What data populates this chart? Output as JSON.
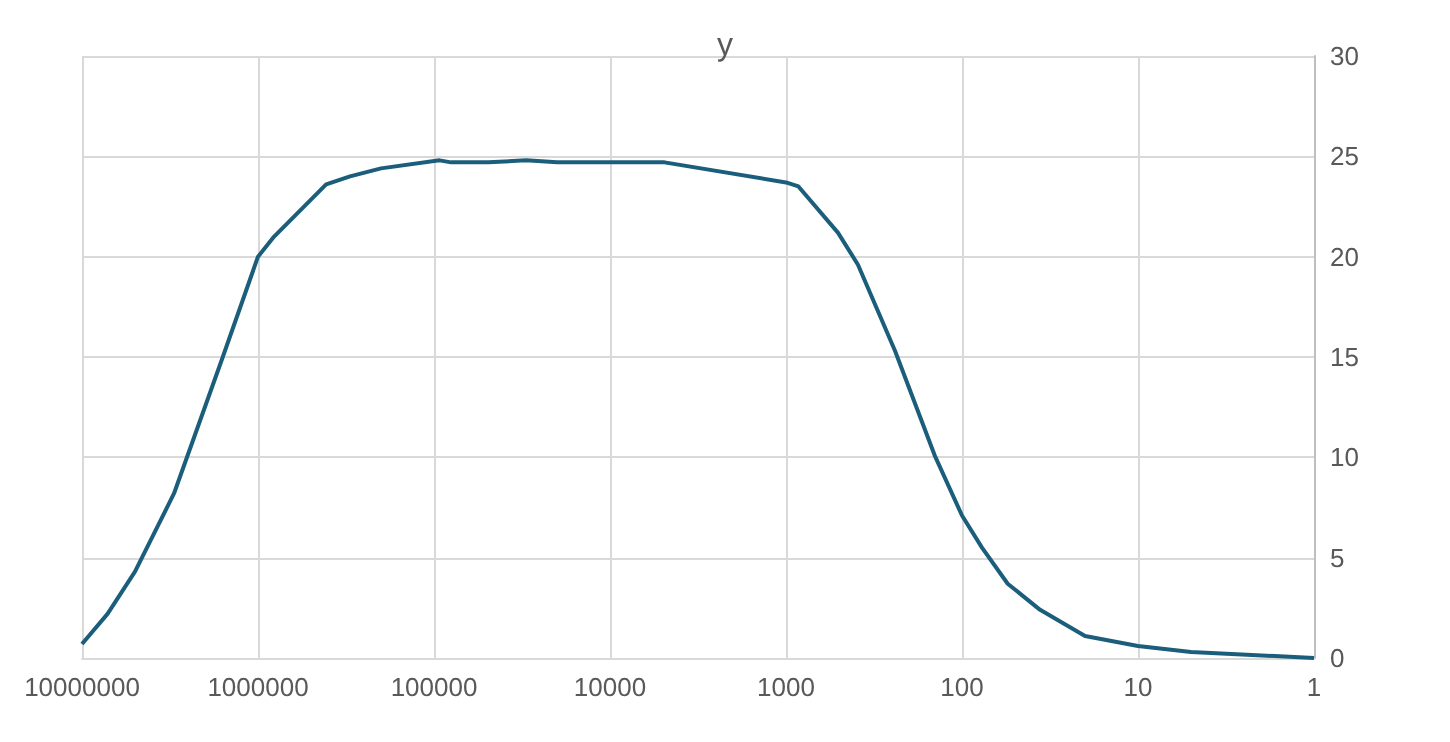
{
  "chart_data": {
    "type": "line",
    "title": "y",
    "x": [
      10000000,
      7160000,
      5000000,
      3000000,
      1600000,
      1000000,
      810000,
      410000,
      300000,
      200000,
      93000,
      80000,
      49000,
      30000,
      20000,
      4900,
      1000,
      850,
      507,
      390,
      240,
      143,
      100,
      77,
      55,
      36,
      20,
      10,
      5,
      1
    ],
    "series": [
      {
        "color": "#1b5e7b",
        "values": [
          0.7,
          2.2,
          4.3,
          8.2,
          14.9,
          20,
          21,
          23.6,
          24,
          24.4,
          24.8,
          24.7,
          24.7,
          24.8,
          24.7,
          24.7,
          23.7,
          23.5,
          21.2,
          19.6,
          15.3,
          10.1,
          7.1,
          5.5,
          3.7,
          2.4,
          1.1,
          0.6,
          0.3,
          0
        ]
      }
    ],
    "log": "x",
    "xlim": [
      10000000,
      1
    ],
    "xticks": [
      10000000,
      1000000,
      100000,
      10000,
      1000,
      100,
      10,
      1
    ],
    "ylim": [
      0,
      30
    ],
    "yticks": [
      0,
      5,
      10,
      15,
      20,
      25,
      30
    ],
    "grid": true,
    "marker": "none",
    "line_style": "solid"
  }
}
